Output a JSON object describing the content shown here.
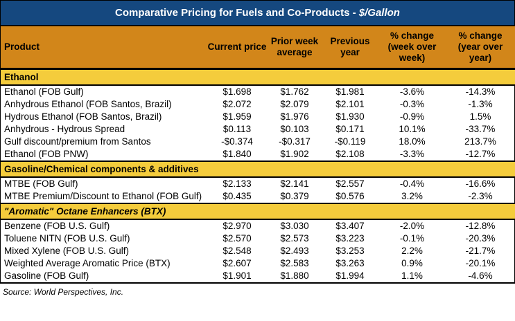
{
  "title": {
    "text_main": "Comparative Pricing for Fuels and Co-Products - ",
    "text_italic": "$/Gallon"
  },
  "colors": {
    "title_bar_bg": "#15487F",
    "title_text": "#FFFFFF",
    "column_header_bg": "#D2861A",
    "section_header_bg": "#F4CC3C",
    "border": "#000000",
    "body_text": "#000000"
  },
  "footer": "Source: World Perspectives, Inc.",
  "chart_data": {
    "type": "table",
    "title": "Comparative Pricing for Fuels and Co-Products - $/Gallon",
    "columns": [
      "Product",
      "Current price",
      "Prior week average",
      "Previous year",
      "% change (week over week)",
      "% change (year over year)"
    ],
    "sections": [
      {
        "label": "Ethanol",
        "italic": false,
        "rows": [
          {
            "product": "Ethanol (FOB Gulf)",
            "values": [
              "$1.698",
              "$1.762",
              "$1.981",
              "-3.6%",
              "-14.3%"
            ]
          },
          {
            "product": "Anhydrous Ethanol (FOB Santos, Brazil)",
            "values": [
              "$2.072",
              "$2.079",
              "$2.101",
              "-0.3%",
              "-1.3%"
            ]
          },
          {
            "product": "Hydrous Ethanol (FOB Santos, Brazil)",
            "values": [
              "$1.959",
              "$1.976",
              "$1.930",
              "-0.9%",
              "1.5%"
            ]
          },
          {
            "product": "Anhydrous - Hydrous Spread",
            "values": [
              "$0.113",
              "$0.103",
              "$0.171",
              "10.1%",
              "-33.7%"
            ]
          },
          {
            "product": "Gulf discount/premium from Santos",
            "values": [
              "-$0.374",
              "-$0.317",
              "-$0.119",
              "18.0%",
              "213.7%"
            ]
          },
          {
            "product": "Ethanol (FOB PNW)",
            "values": [
              "$1.840",
              "$1.902",
              "$2.108",
              "-3.3%",
              "-12.7%"
            ]
          }
        ]
      },
      {
        "label": "Gasoline/Chemical components & additives",
        "italic": false,
        "rows": [
          {
            "product": "MTBE (FOB Gulf)",
            "values": [
              "$2.133",
              "$2.141",
              "$2.557",
              "-0.4%",
              "-16.6%"
            ]
          },
          {
            "product": "MTBE Premium/Discount to Ethanol (FOB Gulf)",
            "values": [
              "$0.435",
              "$0.379",
              "$0.576",
              "3.2%",
              "-2.3%"
            ]
          }
        ]
      },
      {
        "label": "\"Aromatic\" Octane Enhancers (BTX)",
        "italic": true,
        "rows": [
          {
            "product": "Benzene (FOB U.S. Gulf)",
            "values": [
              "$2.970",
              "$3.030",
              "$3.407",
              "-2.0%",
              "-12.8%"
            ]
          },
          {
            "product": "Toluene NITN (FOB U.S. Gulf)",
            "values": [
              "$2.570",
              "$2.573",
              "$3.223",
              "-0.1%",
              "-20.3%"
            ]
          },
          {
            "product": "Mixed Xylene (FOB U.S. Gulf)",
            "values": [
              "$2.548",
              "$2.493",
              "$3.253",
              "2.2%",
              "-21.7%"
            ]
          },
          {
            "product": "Weighted Average Aromatic Price (BTX)",
            "values": [
              "$2.607",
              "$2.583",
              "$3.263",
              "0.9%",
              "-20.1%"
            ]
          },
          {
            "product": "Gasoline (FOB Gulf)",
            "values": [
              "$1.901",
              "$1.880",
              "$1.994",
              "1.1%",
              "-4.6%"
            ]
          }
        ]
      }
    ]
  }
}
